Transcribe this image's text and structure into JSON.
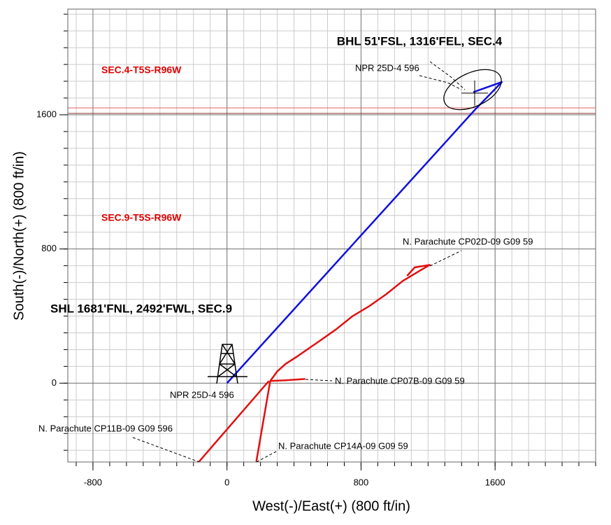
{
  "chart_data": {
    "type": "line",
    "x_label": "West(-)/East(+) (800 ft/in)",
    "y_label": "South(-)/North(+) (800 ft/in)",
    "xlim": [
      -950,
      2200
    ],
    "ylim": [
      -470,
      2230
    ],
    "xticks": [
      -800,
      0,
      800,
      1600
    ],
    "yticks": [
      0,
      800,
      1600
    ],
    "grid": true,
    "hlines": [
      {
        "y": 1641,
        "color": "#e06060"
      },
      {
        "y": 1608,
        "color": "#903030"
      }
    ],
    "annotations": [
      "BHL 51'FSL, 1316'FEL, SEC.4",
      "SEC.4-T5S-R96W",
      "SEC.9-T5S-R96W",
      "SHL 1681'FNL, 2492'FWL, SEC.9"
    ],
    "series": [
      {
        "name": "NPR 25D-4 596",
        "color": "#1010e0",
        "x": [
          0,
          1480,
          1640,
          1470
        ],
        "y": [
          0,
          1630,
          1795,
          1735
        ]
      },
      {
        "name": "N. Parachute CP02D-09 G09 59",
        "color": "#e01010",
        "x": [
          258,
          300,
          350,
          420,
          550,
          650,
          750,
          850,
          950,
          1050,
          1150,
          1210,
          1120,
          1075
        ],
        "y": [
          13,
          70,
          115,
          160,
          250,
          320,
          400,
          460,
          530,
          610,
          670,
          705,
          690,
          640
        ]
      },
      {
        "name": "N. Parachute CP07B-09 G09 59",
        "color": "#e01010",
        "x": [
          258,
          350,
          467
        ],
        "y": [
          13,
          17,
          25
        ]
      },
      {
        "name": "N. Parachute CP11B-09 G09 596",
        "color": "#e01010",
        "x": [
          -167,
          250
        ],
        "y": [
          -468,
          13
        ]
      },
      {
        "name": "N. Parachute CP14A-09 G09 59",
        "color": "#e01010",
        "x": [
          175,
          258
        ],
        "y": [
          -468,
          13
        ]
      }
    ]
  }
}
